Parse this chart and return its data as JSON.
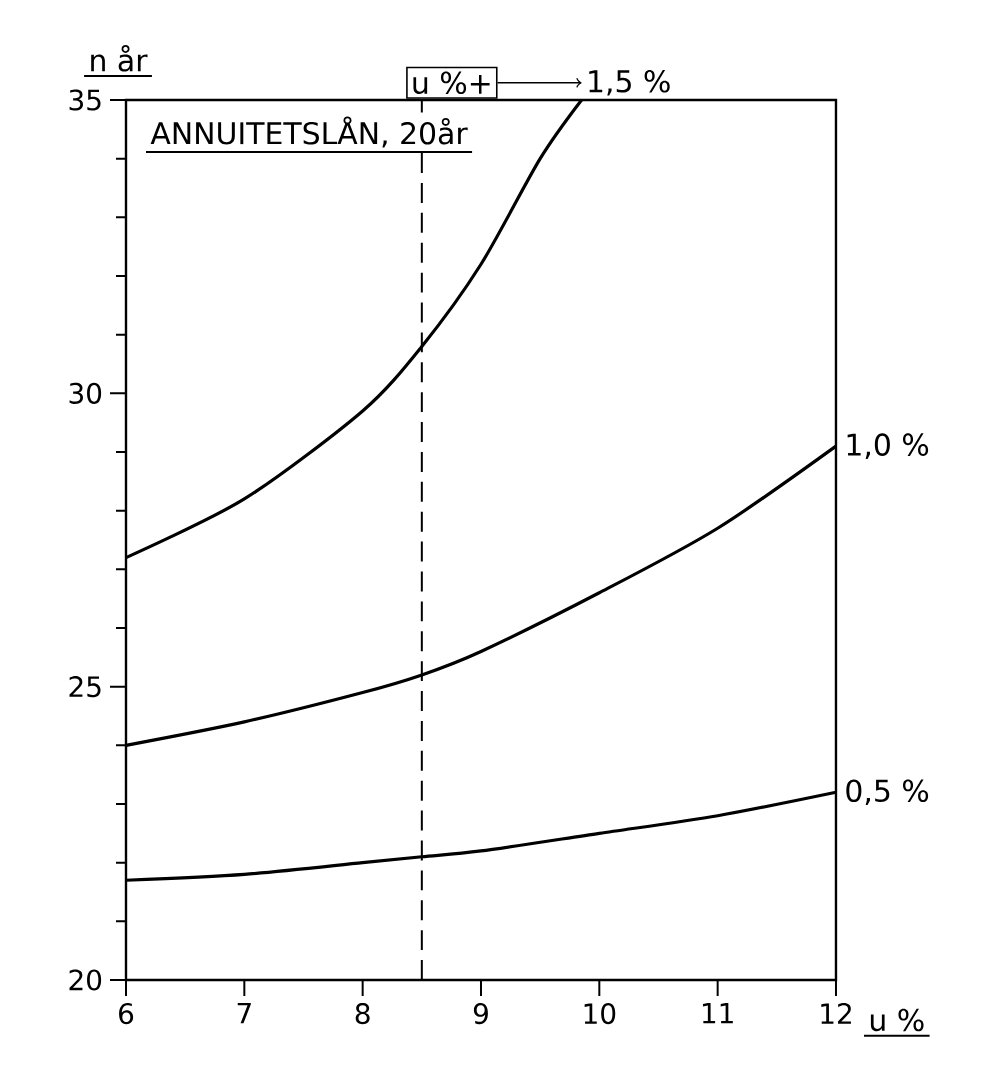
{
  "chart_data": {
    "type": "line",
    "title": "ANNUITETSLÅN, 20år",
    "xlabel": "u %",
    "ylabel": "n år",
    "annotations": [
      "u %+"
    ],
    "xlim": [
      6,
      12
    ],
    "ylim": [
      20,
      35
    ],
    "xticks": [
      6,
      7,
      8,
      9,
      10,
      11,
      12
    ],
    "yticks": [
      20,
      25,
      30,
      35
    ],
    "series": [
      {
        "name": "1,5 %",
        "color": "#000000",
        "x": [
          6,
          7,
          8,
          8.5,
          9,
          9.5,
          9.85
        ],
        "values": [
          27.2,
          28.2,
          29.7,
          30.8,
          32.2,
          34,
          35
        ]
      },
      {
        "name": "1,0 %",
        "color": "#000000",
        "x": [
          6,
          7,
          8,
          8.5,
          9,
          10,
          11,
          12
        ],
        "values": [
          24,
          24.4,
          24.9,
          25.2,
          25.6,
          26.6,
          27.7,
          29.1
        ]
      },
      {
        "name": "0,5 %",
        "color": "#000000",
        "x": [
          6,
          7,
          8,
          8.5,
          9,
          10,
          11,
          12
        ],
        "values": [
          21.7,
          21.8,
          22,
          22.1,
          22.2,
          22.5,
          22.8,
          23.2
        ]
      }
    ],
    "ref_lines": [
      {
        "axis": "x",
        "value": 8.5,
        "color": "#000000",
        "line_style": "dashed"
      }
    ]
  }
}
